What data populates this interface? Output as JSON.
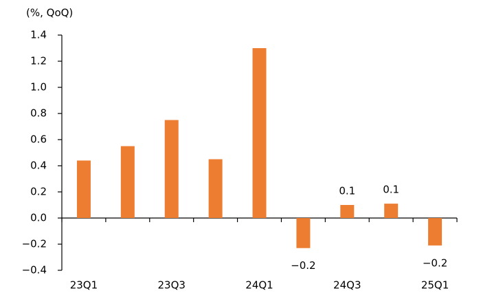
{
  "chart_data": {
    "type": "bar",
    "y_label": "(%, QoQ)",
    "categories": [
      "23Q1",
      null,
      "23Q3",
      null,
      "24Q1",
      null,
      "24Q3",
      null,
      "25Q1"
    ],
    "values": [
      0.44,
      0.55,
      0.75,
      0.45,
      1.3,
      -0.23,
      0.1,
      0.11,
      -0.21
    ],
    "value_labels": [
      null,
      null,
      null,
      null,
      null,
      "−0.2",
      "0.1",
      "0.1",
      "−0.2"
    ],
    "color": "#ED7D31",
    "ylim": [
      -0.4,
      1.4
    ],
    "yticks": [
      {
        "value": -0.4,
        "label": "−0.4"
      },
      {
        "value": -0.2,
        "label": "−0.2"
      },
      {
        "value": 0,
        "label": "0.0"
      },
      0.2,
      0.4,
      0.6,
      0.8,
      {
        "value": 1,
        "label": "1.0"
      },
      1.2,
      1.4
    ],
    "grid": false
  }
}
